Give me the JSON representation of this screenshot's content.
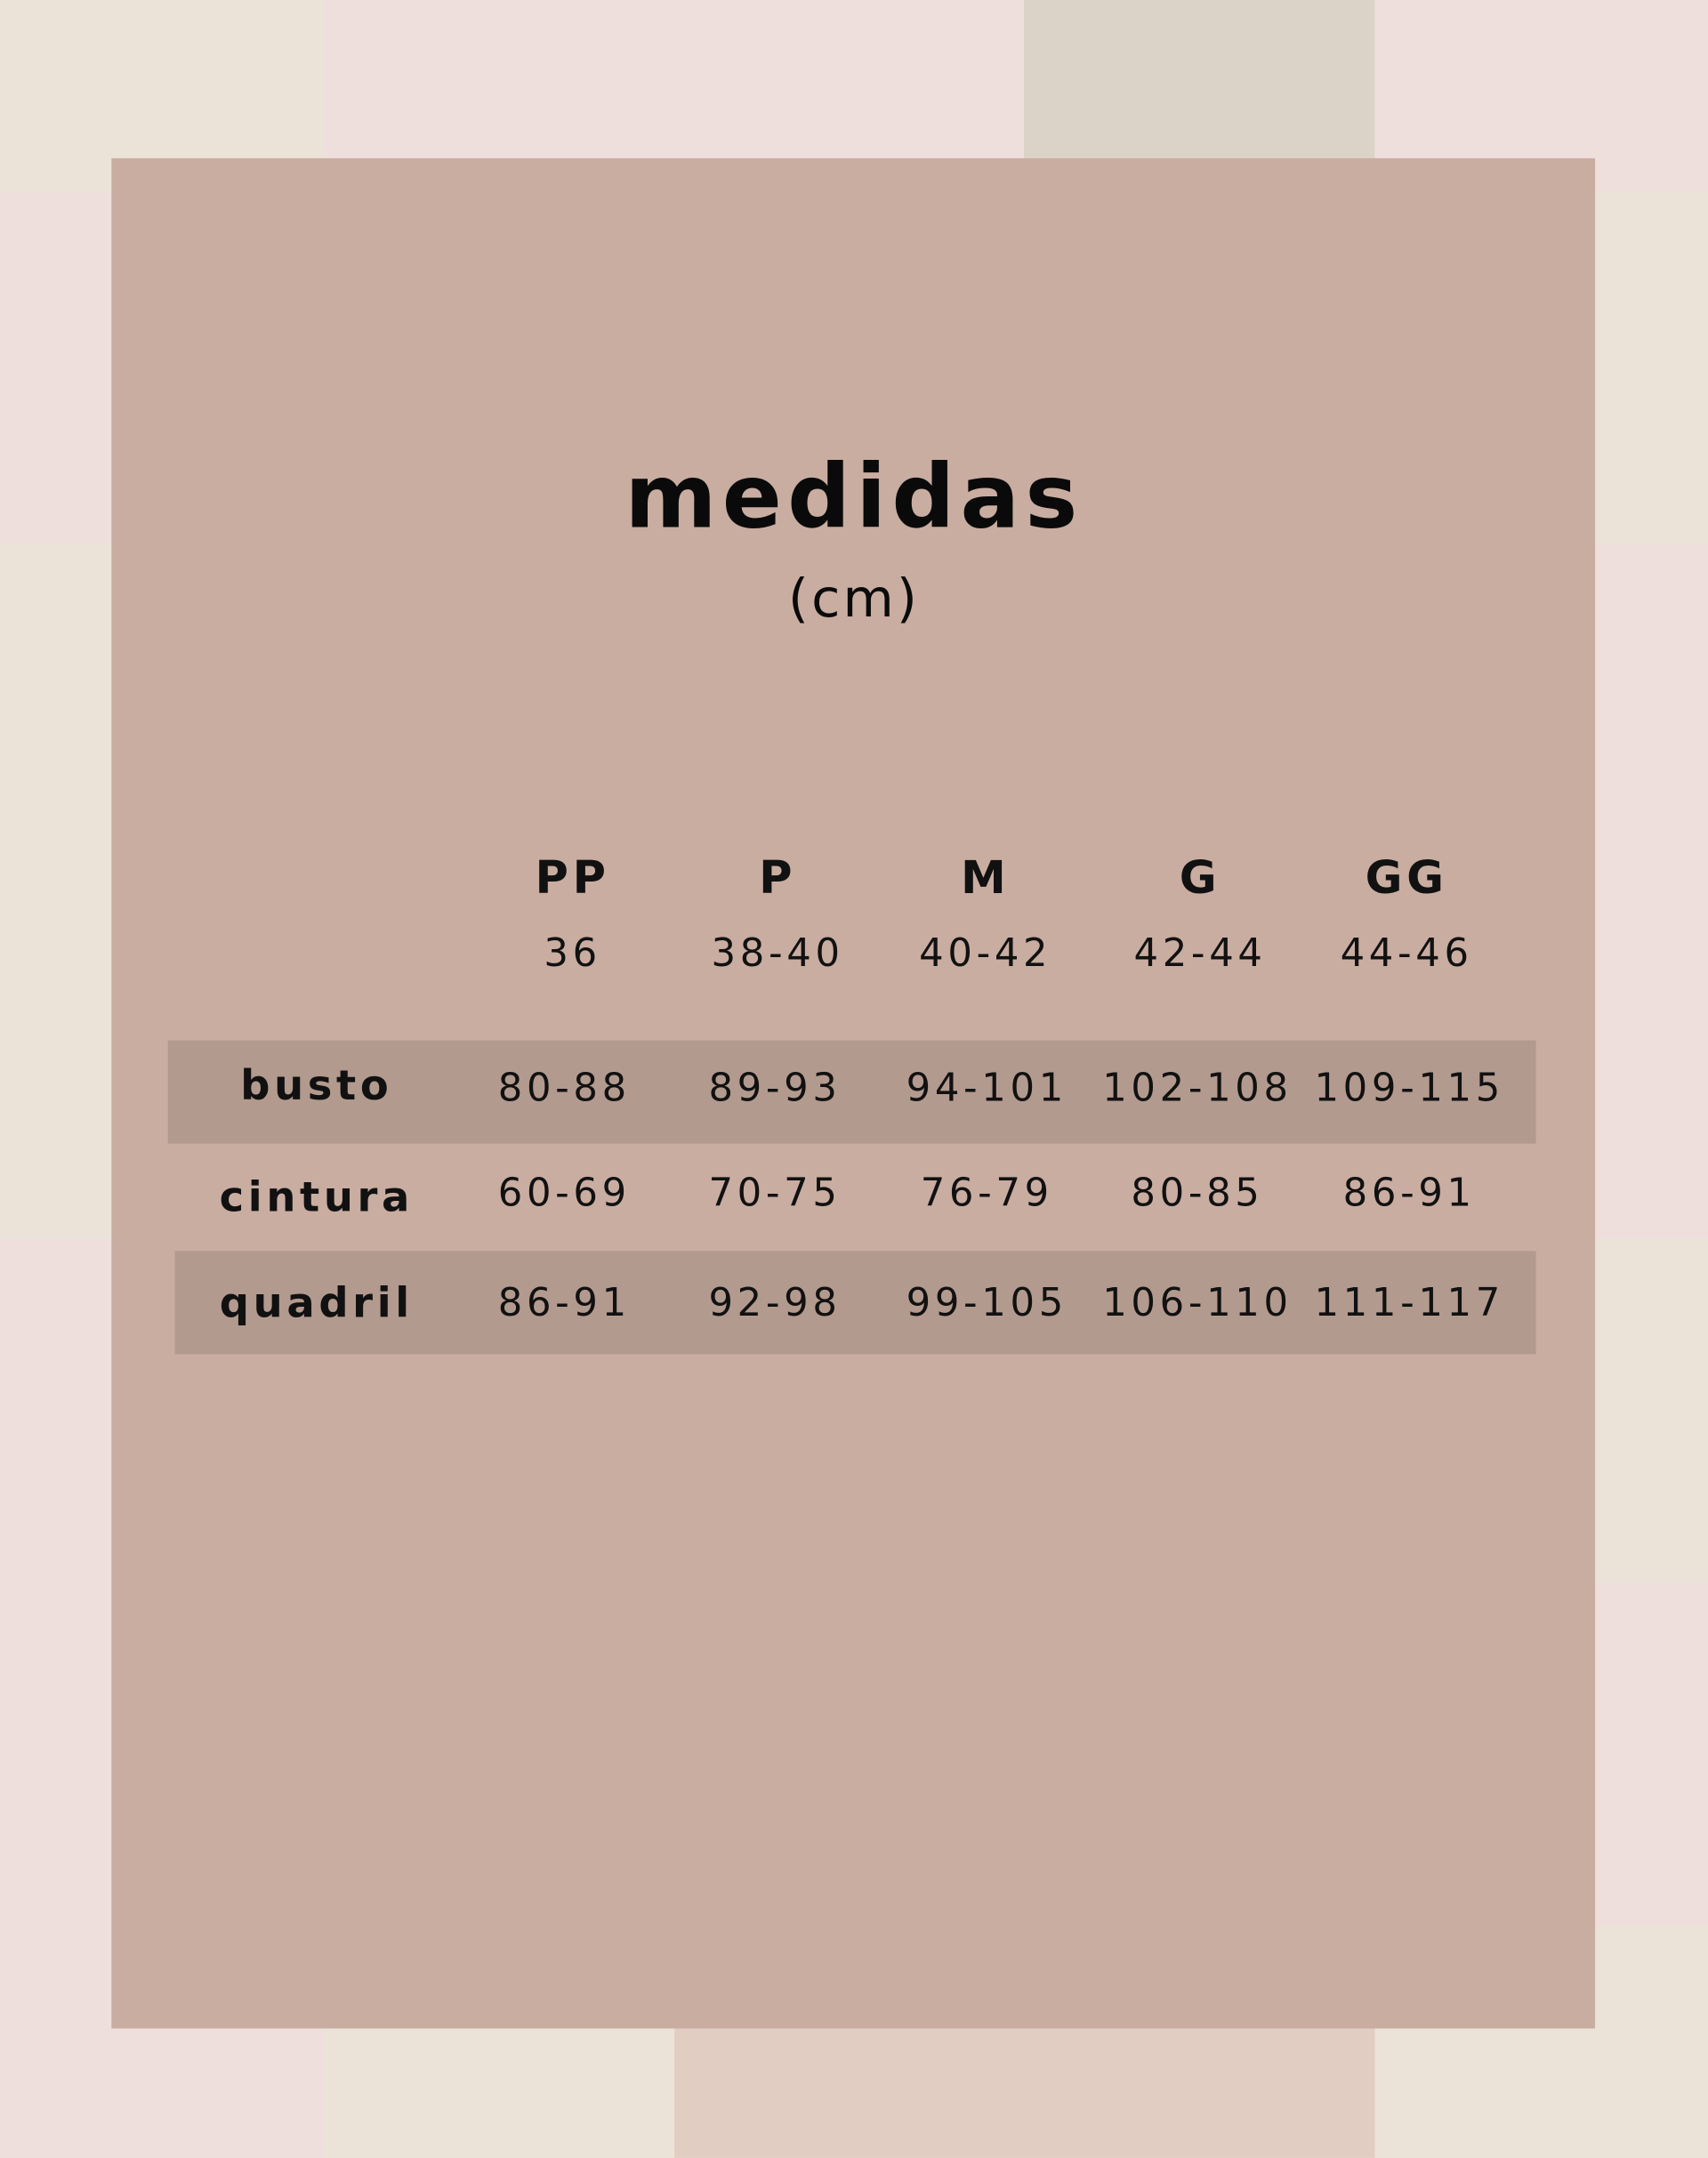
{
  "title": "medidas",
  "unit": "(cm)",
  "sizes": [
    {
      "label": "PP",
      "numeric": "36"
    },
    {
      "label": "P",
      "numeric": "38-40"
    },
    {
      "label": "M",
      "numeric": "40-42"
    },
    {
      "label": "G",
      "numeric": "42-44"
    },
    {
      "label": "GG",
      "numeric": "44-46"
    }
  ],
  "rows": [
    {
      "label": "busto",
      "values": [
        "80-88",
        "89-93",
        "94-101",
        "102-108",
        "109-115"
      ]
    },
    {
      "label": "cintura",
      "values": [
        "60-69",
        "70-75",
        "76-79",
        "80-85",
        "86-91"
      ]
    },
    {
      "label": "quadril",
      "values": [
        "86-91",
        "92-98",
        "99-105",
        "106-110",
        "111-117"
      ]
    }
  ],
  "colors": {
    "panel": "#c9ada1",
    "band": "#b39a8e",
    "pink": "#efdfdc",
    "beige": "#ebe3d8",
    "taupe": "#dcd3c8",
    "light_taupe": "#e2cdc3"
  }
}
